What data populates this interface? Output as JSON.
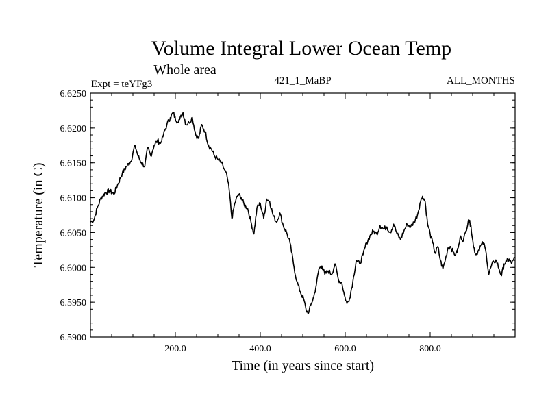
{
  "chart_data": {
    "type": "line",
    "title": "Volume Integral Lower Ocean Temp",
    "subtitle": "Whole area",
    "annotations": {
      "left": "Expt = teYFg3",
      "center": "421_1_MaBP",
      "right": "ALL_MONTHS"
    },
    "xlabel": "Time (in years since start)",
    "ylabel": "Temperature (in C)",
    "xlim": [
      0,
      1000
    ],
    "ylim": [
      6.59,
      6.625
    ],
    "xticks": [
      200,
      400,
      600,
      800
    ],
    "xtick_labels": [
      "200.0",
      "400.0",
      "600.0",
      "800.0"
    ],
    "yticks": [
      6.59,
      6.595,
      6.6,
      6.605,
      6.61,
      6.615,
      6.62,
      6.625
    ],
    "ytick_labels": [
      "6.5900",
      "6.5950",
      "6.6000",
      "6.6050",
      "6.6100",
      "6.6150",
      "6.6200",
      "6.6250"
    ],
    "grid": false,
    "series": [
      {
        "name": "Lower Ocean Temp",
        "color": "#000000",
        "x": [
          0,
          8,
          16,
          25,
          35,
          45,
          55,
          65,
          75,
          85,
          95,
          105,
          112,
          120,
          128,
          135,
          142,
          150,
          158,
          165,
          172,
          180,
          188,
          195,
          202,
          210,
          218,
          225,
          232,
          240,
          248,
          255,
          262,
          270,
          278,
          285,
          292,
          300,
          308,
          316,
          322,
          327,
          333,
          340,
          348,
          355,
          362,
          370,
          378,
          385,
          392,
          400,
          408,
          415,
          422,
          430,
          438,
          446,
          454,
          462,
          470,
          478,
          486,
          494,
          502,
          508,
          514,
          520,
          526,
          532,
          538,
          545,
          552,
          560,
          568,
          576,
          584,
          592,
          598,
          604,
          610,
          618,
          626,
          634,
          642,
          650,
          658,
          666,
          674,
          682,
          690,
          698,
          706,
          714,
          722,
          730,
          738,
          746,
          754,
          762,
          770,
          776,
          782,
          788,
          794,
          800,
          806,
          812,
          818,
          824,
          830,
          836,
          842,
          848,
          854,
          860,
          866,
          872,
          878,
          884,
          890,
          896,
          902,
          908,
          914,
          920,
          926,
          932,
          938,
          944,
          950,
          956,
          962,
          968,
          974,
          980,
          986,
          992,
          998
        ],
        "y": [
          6.6065,
          6.6068,
          6.6085,
          6.61,
          6.6107,
          6.611,
          6.6105,
          6.612,
          6.6135,
          6.6145,
          6.6152,
          6.6175,
          6.616,
          6.615,
          6.6145,
          6.6172,
          6.616,
          6.6175,
          6.6182,
          6.6178,
          6.619,
          6.6205,
          6.6215,
          6.6222,
          6.621,
          6.6212,
          6.6222,
          6.6205,
          6.6208,
          6.6215,
          6.619,
          6.6185,
          6.6205,
          6.6195,
          6.6175,
          6.617,
          6.616,
          6.6155,
          6.615,
          6.614,
          6.613,
          6.611,
          6.607,
          6.6092,
          6.6105,
          6.61,
          6.609,
          6.6085,
          6.6065,
          6.6048,
          6.6085,
          6.6092,
          6.607,
          6.6098,
          6.6095,
          6.6075,
          6.6065,
          6.6078,
          6.606,
          6.605,
          6.6035,
          6.6005,
          6.598,
          6.5965,
          6.5955,
          6.5938,
          6.5935,
          6.5948,
          6.5958,
          6.5975,
          6.5998,
          6.6002,
          6.599,
          6.5995,
          6.599,
          6.6005,
          6.5982,
          6.5978,
          6.596,
          6.5948,
          6.5955,
          6.598,
          6.601,
          6.6005,
          6.6018,
          6.6035,
          6.6045,
          6.6052,
          6.6048,
          6.606,
          6.6055,
          6.6058,
          6.605,
          6.6062,
          6.6048,
          6.604,
          6.6052,
          6.6062,
          6.6058,
          6.6065,
          6.6075,
          6.6092,
          6.6102,
          6.6095,
          6.6062,
          6.6048,
          6.6035,
          6.602,
          6.603,
          6.601,
          6.5998,
          6.6012,
          6.6028,
          6.603,
          6.6022,
          6.6018,
          6.6028,
          6.6045,
          6.6038,
          6.6052,
          6.6068,
          6.606,
          6.603,
          6.6018,
          6.6025,
          6.6032,
          6.6035,
          6.602,
          6.599,
          6.6002,
          6.6008,
          6.601,
          6.5998,
          6.5988,
          6.6005,
          6.6008,
          6.6012,
          6.6005,
          6.6015
        ]
      }
    ]
  }
}
